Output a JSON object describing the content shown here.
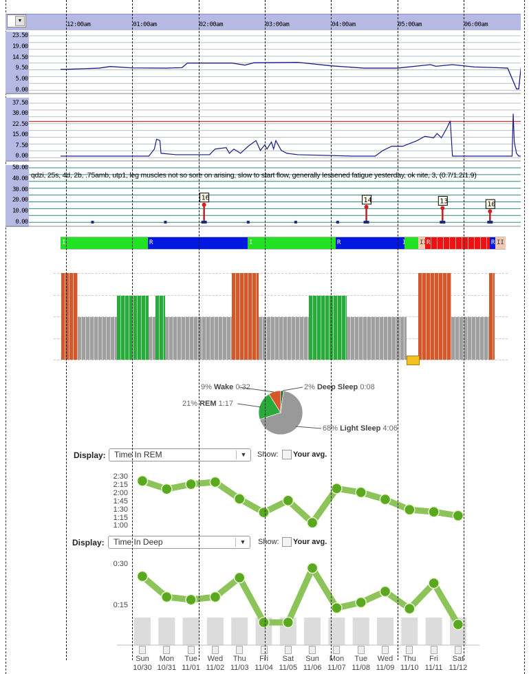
{
  "header": {
    "time_labels": [
      "12:00am",
      "01:00am",
      "02:00am",
      "03:00am",
      "04:00am",
      "05:00am",
      "06:00am"
    ],
    "dropdown_icon": "chevron-down-icon"
  },
  "panel1": {
    "ticks": [
      "23.50",
      "19.00",
      "14.50",
      "9.50",
      "5.00",
      "0.00"
    ],
    "max": 23.5,
    "series": [
      [
        -5,
        9
      ],
      [
        0,
        9
      ],
      [
        30,
        9.5
      ],
      [
        40,
        10.2
      ],
      [
        60,
        9.6
      ],
      [
        90,
        9.5
      ],
      [
        105,
        9.7
      ],
      [
        110,
        11.7
      ],
      [
        150,
        11.7
      ],
      [
        162,
        10.8
      ],
      [
        170,
        11.8
      ],
      [
        210,
        12
      ],
      [
        240,
        10.5
      ],
      [
        270,
        9.5
      ],
      [
        300,
        9.5
      ],
      [
        330,
        11
      ],
      [
        335,
        10.3
      ],
      [
        350,
        11
      ],
      [
        370,
        10
      ],
      [
        390,
        9.7
      ],
      [
        400,
        9.5
      ],
      [
        408,
        0.5
      ],
      [
        410,
        0.5
      ],
      [
        412,
        9.5
      ],
      [
        484,
        9.5
      ],
      [
        487,
        0
      ],
      [
        520,
        0
      ]
    ]
  },
  "panel2": {
    "ticks": [
      "37.50",
      "30.00",
      "22.50",
      "15.00",
      "7.50",
      "0.00"
    ],
    "max": 37.5,
    "threshold": 24.6,
    "series": [
      [
        -5,
        0
      ],
      [
        75,
        0
      ],
      [
        80,
        5
      ],
      [
        82,
        12
      ],
      [
        85,
        11
      ],
      [
        86,
        2
      ],
      [
        100,
        1
      ],
      [
        130,
        1
      ],
      [
        135,
        5
      ],
      [
        145,
        6
      ],
      [
        148,
        2
      ],
      [
        152,
        5
      ],
      [
        158,
        2
      ],
      [
        165,
        7
      ],
      [
        172,
        11
      ],
      [
        176,
        4
      ],
      [
        180,
        8
      ],
      [
        182,
        5
      ],
      [
        186,
        10
      ],
      [
        188,
        5
      ],
      [
        190,
        11
      ],
      [
        195,
        4
      ],
      [
        200,
        2
      ],
      [
        210,
        1
      ],
      [
        260,
        0
      ],
      [
        280,
        0
      ],
      [
        287,
        4
      ],
      [
        295,
        7
      ],
      [
        305,
        7
      ],
      [
        318,
        11
      ],
      [
        325,
        14
      ],
      [
        333,
        13
      ],
      [
        336,
        16
      ],
      [
        340,
        13
      ],
      [
        345,
        20
      ],
      [
        348,
        25
      ],
      [
        350,
        0
      ],
      [
        404,
        0
      ],
      [
        405,
        30
      ],
      [
        406,
        10
      ],
      [
        408,
        2
      ],
      [
        410,
        0
      ],
      [
        480,
        0
      ],
      [
        482,
        25
      ],
      [
        485,
        0
      ],
      [
        520,
        0
      ]
    ]
  },
  "panel3": {
    "ticks": [
      "50.00",
      "40.00",
      "30.00",
      "20.00",
      "10.00",
      "0.00"
    ],
    "max": 50,
    "note": "qdzi, 25s, 4d, 2b, .75amb, utp1, leg muscles not so sore on arising, slow to start flow, generally lessened fatigue yesterday, ok nite, 3, (0.7/1.2/1.9)",
    "markers": [
      24,
      90,
      165,
      208,
      246
    ],
    "pins": [
      {
        "t": 125,
        "v": 16,
        "label": "16"
      },
      {
        "t": 272,
        "v": 14,
        "label": "14"
      },
      {
        "t": 341,
        "v": 13,
        "label": "13"
      },
      {
        "t": 384,
        "v": 10,
        "label": "10"
      }
    ]
  },
  "hypnogram": [
    {
      "stage": "I",
      "color": "#22e022",
      "w": 127
    },
    {
      "stage": "R",
      "color": "#0018e0",
      "w": 145
    },
    {
      "stage": "I",
      "color": "#22e022",
      "w": 128
    },
    {
      "stage": "R",
      "color": "#0018e0",
      "w": 95
    },
    {
      "stage": "I",
      "color": "#0018e0",
      "w": 5
    },
    {
      "stage": "",
      "color": "#22e022",
      "w": 20
    },
    {
      "stage": "II",
      "color": "#f4c8b0",
      "w": 10
    },
    {
      "stage": "R",
      "color": "#ee1111",
      "w": 94
    },
    {
      "stage": "R",
      "color": "#0018e0",
      "w": 8
    },
    {
      "stage": "II",
      "color": "#f4c8b0",
      "w": 15
    }
  ],
  "colors": {
    "wake": "#d4582a",
    "light": "#a0a0a0",
    "rem": "#2aaa3a",
    "deep": "#1e5a2a",
    "line": "#8cc45a",
    "point": "#5aa820"
  },
  "pie": {
    "slices": [
      {
        "name": "Deep Sleep",
        "pct": 2,
        "text": "2%",
        "dur": "0:08",
        "color": "#1e5a2a"
      },
      {
        "name": "Light Sleep",
        "pct": 68,
        "text": "68%",
        "dur": "4:06",
        "color": "#999999"
      },
      {
        "name": "REM",
        "pct": 21,
        "text": "21%",
        "dur": "1:17",
        "color": "#2aaa3a"
      },
      {
        "name": "Wake",
        "pct": 9,
        "text": "9%",
        "dur": "0:32",
        "color": "#d4582a"
      }
    ]
  },
  "rem_chart": {
    "display_label": "Display:",
    "selected": "Time In REM",
    "show_label": "Show:",
    "avg_label": "Your avg.",
    "yticks": [
      "2:30",
      "2:15",
      "2:00",
      "1:45",
      "1:30",
      "1:15",
      "1:00"
    ],
    "values": [
      142,
      127,
      136,
      140,
      109,
      84,
      106,
      65,
      128,
      121,
      108,
      89,
      85,
      78
    ]
  },
  "deep_chart": {
    "display_label": "Display:",
    "selected": "Time In Deep",
    "show_label": "Show:",
    "avg_label": "Your avg.",
    "yticks": [
      "0:30",
      "0:15"
    ],
    "values": [
      25.5,
      18,
      17,
      18,
      25,
      8.75,
      8.75,
      28.5,
      14,
      16,
      20,
      13.75,
      23,
      8
    ]
  },
  "days": [
    [
      "Sun",
      "10/30"
    ],
    [
      "Mon",
      "10/31"
    ],
    [
      "Tue",
      "11/01"
    ],
    [
      "Wed",
      "11/02"
    ],
    [
      "Thu",
      "11/03"
    ],
    [
      "Fri",
      "11/04"
    ],
    [
      "Sat",
      "11/05"
    ],
    [
      "Sun",
      "11/06"
    ],
    [
      "Mon",
      "11/07"
    ],
    [
      "Tue",
      "11/08"
    ],
    [
      "Wed",
      "11/09"
    ],
    [
      "Thu",
      "11/10"
    ],
    [
      "Fri",
      "11/11"
    ],
    [
      "Sat",
      "11/12"
    ]
  ]
}
